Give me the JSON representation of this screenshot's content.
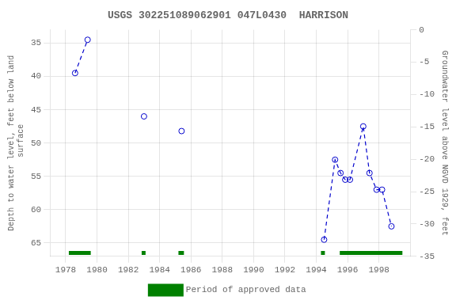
{
  "chart_data": {
    "type": "scatter",
    "title": "USGS 302251089062901 047L0430  HARRISON",
    "ylabel": "Depth to water level, feet below land\n surface",
    "y2label": "Groundwater level above NGVD 1929, feet",
    "xlim": [
      1977.0,
      2000.0
    ],
    "xticks": [
      1978,
      1980,
      1982,
      1984,
      1986,
      1988,
      1990,
      1992,
      1994,
      1996,
      1998
    ],
    "ylim": [
      67,
      33
    ],
    "yticks": [
      35,
      40,
      45,
      50,
      55,
      60,
      65
    ],
    "y2lim": [
      -35,
      0
    ],
    "y2ticks": [
      0,
      -5,
      -10,
      -15,
      -20,
      -25,
      -30,
      -35
    ],
    "grid": true,
    "legend": "bottom",
    "series": [
      {
        "x": [
          1978.6,
          1979.4
        ],
        "values": [
          39.5,
          34.5
        ],
        "color": "#0000cc",
        "marker": "circle",
        "line_style": "dashed"
      },
      {
        "x": [
          1983.0,
          1985.4
        ],
        "values": [
          46.0,
          48.2
        ],
        "color": "#0000cc",
        "marker": "circle",
        "line_style": "none"
      },
      {
        "x": [
          1994.5,
          1995.2,
          1995.55,
          1995.85,
          1996.15,
          1997.0,
          1997.4,
          1997.85,
          1998.2,
          1998.8
        ],
        "values": [
          64.5,
          52.5,
          54.5,
          55.5,
          55.5,
          47.5,
          54.5,
          57.0,
          57.0,
          62.5
        ],
        "color": "#0000cc",
        "marker": "circle",
        "line_style": "dashed"
      },
      {
        "name": "Period of approved data",
        "type": "bar",
        "orientation": "horizontal",
        "color": "#008000",
        "y": 66.5,
        "ranges": [
          [
            1978.2,
            1979.6
          ],
          [
            1982.85,
            1983.1
          ],
          [
            1985.2,
            1985.55
          ],
          [
            1994.3,
            1994.55
          ],
          [
            1995.5,
            1999.5
          ]
        ]
      }
    ]
  }
}
